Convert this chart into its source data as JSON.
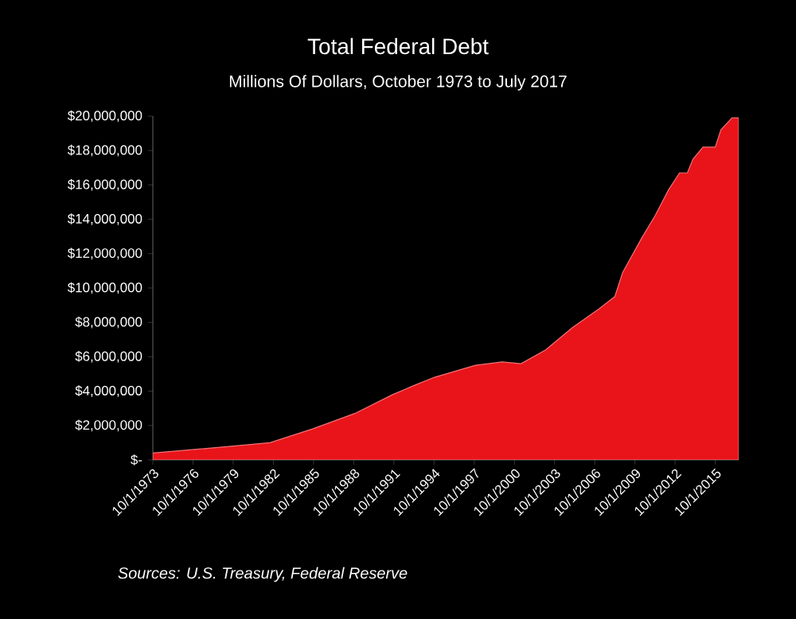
{
  "chart_data": {
    "type": "area",
    "title": "Total Federal Debt",
    "subtitle": "Millions Of Dollars, October 1973 to July 2017",
    "annotations": [
      "Sources:  U.S. Treasury, Federal Reserve"
    ],
    "x": [
      "1973-10",
      "1976-10",
      "1979-10",
      "1982-07",
      "1985-09",
      "1988-11",
      "1991-09",
      "1993-03",
      "1994-10",
      "1997-11",
      "1999-11",
      "2001-04",
      "2003-02",
      "2005-02",
      "2007-02",
      "2008-04",
      "2008-11",
      "2010-04",
      "2011-04",
      "2012-04",
      "2013-02",
      "2013-09",
      "2014-02",
      "2014-11",
      "2015-10",
      "2016-03",
      "2017-01",
      "2017-07"
    ],
    "values": [
      400000,
      600000,
      800000,
      1000000,
      1800000,
      2700000,
      3800000,
      4300000,
      4800000,
      5500000,
      5700000,
      5600000,
      6400000,
      7700000,
      8800000,
      9500000,
      10900000,
      12900000,
      14200000,
      15700000,
      16700000,
      16700000,
      17500000,
      18200000,
      18200000,
      19200000,
      19900000,
      19900000
    ],
    "color": "#e8141a",
    "xlim": [
      "1973-10",
      "2017-07"
    ],
    "xticks": [
      {
        "value": "1973-10-01",
        "label": "10/1/1973"
      },
      {
        "value": "1976-10-01",
        "label": "10/1/1976"
      },
      {
        "value": "1979-10-01",
        "label": "10/1/1979"
      },
      {
        "value": "1982-10-01",
        "label": "10/1/1982"
      },
      {
        "value": "1985-10-01",
        "label": "10/1/1985"
      },
      {
        "value": "1988-10-01",
        "label": "10/1/1988"
      },
      {
        "value": "1991-10-01",
        "label": "10/1/1991"
      },
      {
        "value": "1994-10-01",
        "label": "10/1/1994"
      },
      {
        "value": "1997-10-01",
        "label": "10/1/1997"
      },
      {
        "value": "2000-10-01",
        "label": "10/1/2000"
      },
      {
        "value": "2003-10-01",
        "label": "10/1/2003"
      },
      {
        "value": "2006-10-01",
        "label": "10/1/2006"
      },
      {
        "value": "2009-10-01",
        "label": "10/1/2009"
      },
      {
        "value": "2012-10-01",
        "label": "10/1/2012"
      },
      {
        "value": "2015-10-01",
        "label": "10/1/2015"
      }
    ],
    "ylim": [
      0,
      20000000
    ],
    "yticks": [
      {
        "value": 0,
        "label": "$-"
      },
      {
        "value": 2000000,
        "label": "$2,000,000"
      },
      {
        "value": 4000000,
        "label": "$4,000,000"
      },
      {
        "value": 6000000,
        "label": "$6,000,000"
      },
      {
        "value": 8000000,
        "label": "$8,000,000"
      },
      {
        "value": 10000000,
        "label": "$10,000,000"
      },
      {
        "value": 12000000,
        "label": "$12,000,000"
      },
      {
        "value": 14000000,
        "label": "$14,000,000"
      },
      {
        "value": 16000000,
        "label": "$16,000,000"
      },
      {
        "value": 18000000,
        "label": "$18,000,000"
      },
      {
        "value": 20000000,
        "label": "$20,000,000"
      }
    ],
    "grid": false
  }
}
